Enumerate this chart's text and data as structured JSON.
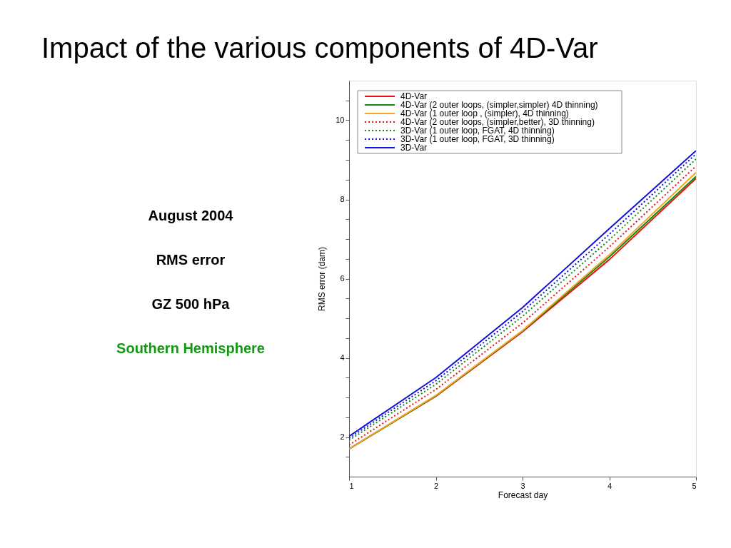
{
  "chart_data": {
    "type": "line",
    "title": "Impact of the various components of 4D-Var",
    "xlabel": "Forecast day",
    "ylabel": "RMS error (dam)",
    "x": [
      1,
      2,
      3,
      4,
      5
    ],
    "series": [
      {
        "name": "4D-Var",
        "color": "#ee1111",
        "line_style": "solid",
        "values": [
          1.7,
          3.03,
          4.66,
          6.48,
          8.53
        ]
      },
      {
        "name": "4D-Var (2 outer loops, (simpler,simpler) 4D thinning)",
        "color": "#118811",
        "line_style": "solid",
        "values": [
          1.7,
          3.04,
          4.68,
          6.55,
          8.58
        ]
      },
      {
        "name": "4D-Var (1 outer loop , (simpler), 4D thinning)",
        "color": "#f5a623",
        "line_style": "solid",
        "values": [
          1.7,
          3.05,
          4.69,
          6.6,
          8.68
        ]
      },
      {
        "name": "4D-Var (2 outer loops, (simpler,better), 3D thinning)",
        "color": "#ee1111",
        "line_style": "dotted",
        "values": [
          1.8,
          3.2,
          4.88,
          6.8,
          8.84
        ]
      },
      {
        "name": "3D-Var (1 outer loop, FGAT, 4D thinning)",
        "color": "#118811",
        "line_style": "dotted",
        "values": [
          1.92,
          3.33,
          5.05,
          6.98,
          9.02
        ]
      },
      {
        "name": "3D-Var (1 outer loop, FGAT, 3D thinning)",
        "color": "#1111dd",
        "line_style": "dotted",
        "values": [
          1.97,
          3.42,
          5.17,
          7.12,
          9.15
        ]
      },
      {
        "name": "3D-Var",
        "color": "#1111dd",
        "line_style": "solid",
        "values": [
          2.02,
          3.5,
          5.27,
          7.26,
          9.23
        ]
      }
    ],
    "xlim": [
      1,
      5
    ],
    "xticks": [
      1,
      2,
      3,
      4,
      5
    ],
    "ylim": [
      1,
      11
    ],
    "yticks": [
      {
        "value": 1.5,
        "label": null
      },
      2,
      {
        "value": 2.5,
        "label": null
      },
      {
        "value": 3,
        "label": null
      },
      {
        "value": 3.5,
        "label": null
      },
      4,
      {
        "value": 4.5,
        "label": null
      },
      {
        "value": 5,
        "label": null
      },
      {
        "value": 5.5,
        "label": null
      },
      6,
      {
        "value": 6.5,
        "label": null
      },
      {
        "value": 7,
        "label": null
      },
      {
        "value": 7.5,
        "label": null
      },
      8,
      {
        "value": 8.5,
        "label": null
      },
      {
        "value": 9,
        "label": null
      },
      {
        "value": 9.5,
        "label": null
      },
      10,
      {
        "value": 10.5,
        "label": null
      }
    ],
    "grid": false,
    "legend": "top left",
    "marker": "none",
    "annotations": [
      "August 2004",
      "RMS error",
      "GZ 500 hPa",
      "Southern Hemisphere"
    ]
  }
}
